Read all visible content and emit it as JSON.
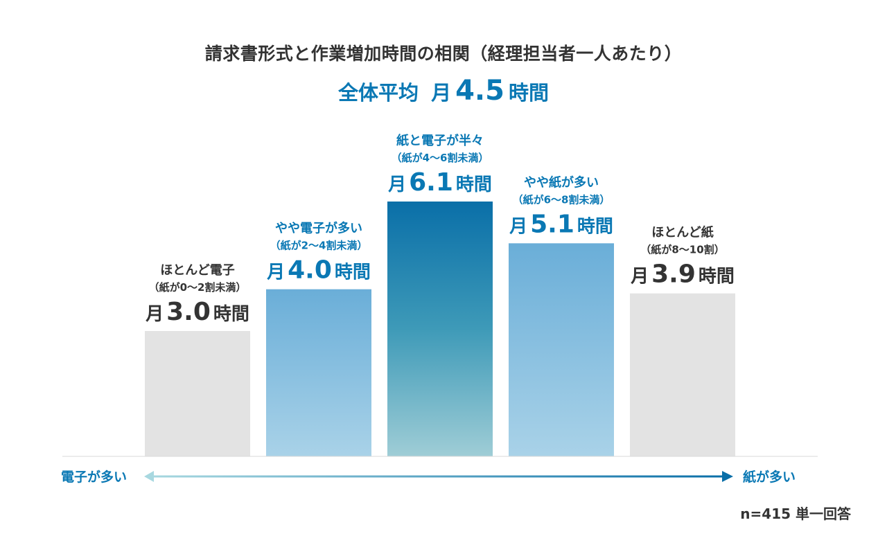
{
  "chart_data": {
    "type": "bar",
    "title": "請求書形式と作業増加時間の相関（経理担当者一人あたり）",
    "overall": {
      "label": "全体平均",
      "prefix": "月",
      "value": 4.5,
      "value_text": "4.5",
      "unit": "時間"
    },
    "categories": [
      "ほとんど電子",
      "やや電子が多い",
      "紙と電子が半々",
      "やや紙が多い",
      "ほとんど紙"
    ],
    "sublabels": [
      "（紙が0〜2割未満）",
      "（紙が2〜4割未満）",
      "（紙が4〜6割未満）",
      "（紙が6〜8割未満）",
      "（紙が8〜10割）"
    ],
    "values": [
      3.0,
      4.0,
      6.1,
      5.1,
      3.9
    ],
    "value_texts": [
      "3.0",
      "4.0",
      "6.1",
      "5.1",
      "3.9"
    ],
    "value_prefix": "月",
    "value_unit": "時間",
    "ylim": [
      0,
      6.1
    ],
    "axis": {
      "left_label": "電子が多い",
      "right_label": "紙が多い"
    },
    "footnote": "n=415 単一回答",
    "colors": {
      "grey_bar": "#e3e3e3",
      "blue_light_top": "#6aaed8",
      "blue_light_bottom": "#a9d2e8",
      "blue_dark_top": "#0a6fa8",
      "blue_dark_mid": "#3e9ab8",
      "blue_dark_bottom": "#9fcdd6",
      "accent_text": "#0a78b4",
      "dark_text": "#333333",
      "axis_line": "#d9d9d9",
      "arrow_left": "#a8d8e0",
      "arrow_right": "#0a6fa8"
    },
    "bar_styles": [
      "grey",
      "light",
      "dark",
      "light",
      "grey"
    ]
  }
}
